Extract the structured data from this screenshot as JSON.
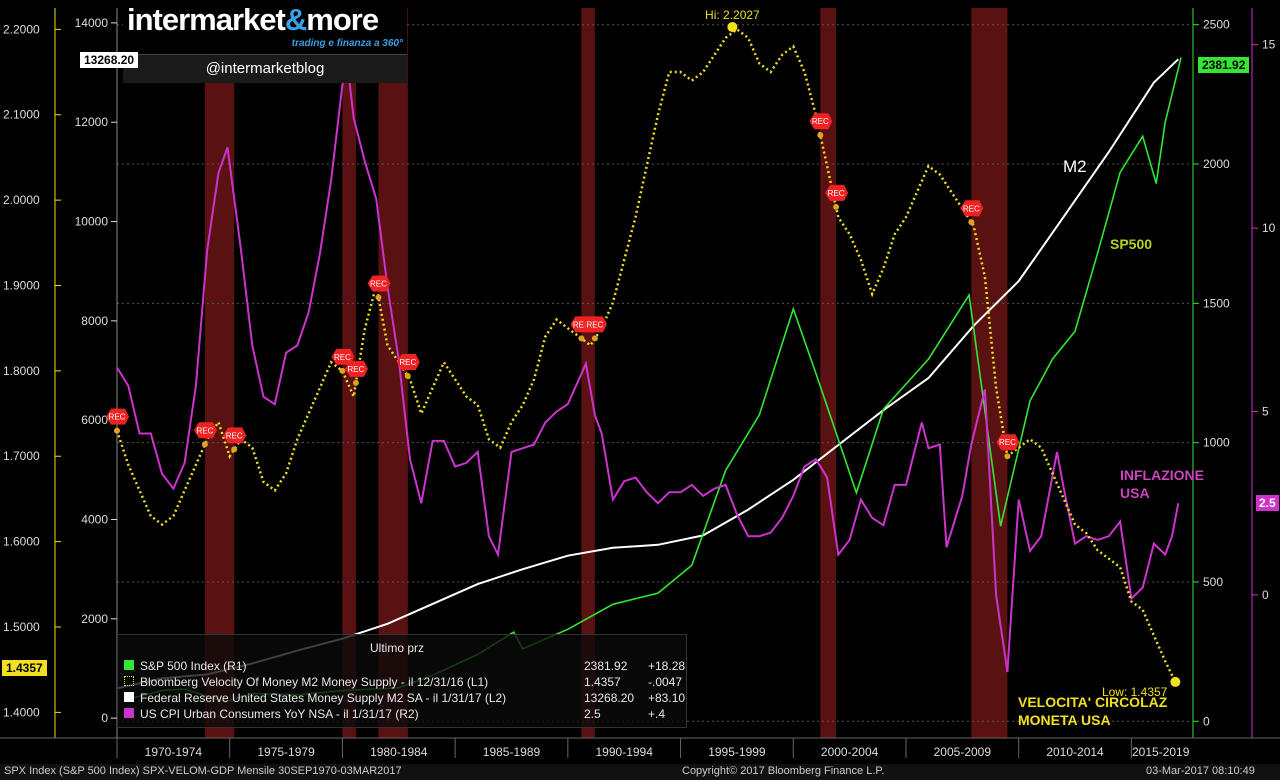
{
  "brand": {
    "name_main": "intermarket",
    "name_amp": "&",
    "name_end": "more",
    "tagline": "trading e finanza a 360°",
    "handle": "@intermarketblog"
  },
  "colors": {
    "sp500": "#33e633",
    "velocity": "#f0e020",
    "m2": "#ffffff",
    "cpi": "#cc33cc",
    "recession": "#6a1414",
    "rec_marker": "#ee2222"
  },
  "axes": {
    "velocity_left": {
      "ticks": [
        "2.2000",
        "2.1000",
        "2.0000",
        "1.9000",
        "1.8000",
        "1.7000",
        "1.6000",
        "1.5000",
        "1.4000"
      ],
      "min": 1.37,
      "max": 2.225
    },
    "m2_left": {
      "ticks": [
        "14000",
        "12000",
        "10000",
        "8000",
        "6000",
        "4000",
        "2000",
        "0"
      ],
      "min": -400,
      "max": 14300
    },
    "sp500_right": {
      "ticks": [
        "2500",
        "2000",
        "1500",
        "1000",
        "500",
        "0"
      ],
      "min": -60,
      "max": 2560
    },
    "cpi_right": {
      "ticks": [
        "15",
        "10",
        "5",
        "0"
      ],
      "min": -3.9,
      "max": 16.0
    },
    "x_periods": [
      "1970-1974",
      "1975-1979",
      "1980-1984",
      "1985-1989",
      "1990-1994",
      "1995-1999",
      "2000-2004",
      "2005-2009",
      "2010-2014",
      "2015-2019"
    ]
  },
  "flags": {
    "m2_last": "13268.20",
    "velocity_last": "1.4357",
    "sp500_last": "2381.92",
    "cpi_last": "2.5"
  },
  "annotations": {
    "hi": "Hi: 2.2027",
    "low": "Low: 1.4357",
    "m2": "M2",
    "sp500": "SP500",
    "inflation_1": "INFLAZIONE",
    "inflation_2": "USA",
    "velocity_1": "VELOCITA' CIRCOLAZ",
    "velocity_2": "MONETA USA",
    "rec": "REC"
  },
  "legend": {
    "header": "Ultimo prz",
    "rows": [
      {
        "name": "S&P 500 Index  (R1)",
        "last": "2381.92",
        "change": "+18.28"
      },
      {
        "name": "Bloomberg Velocity Of Money M2 Money Supply -  il 12/31/16  (L1)",
        "last": "1.4357",
        "change": "-.0047"
      },
      {
        "name": "Federal Reserve United States Money Supply M2 SA -  il 1/31/17  (L2)",
        "last": "13268.20",
        "change": "+83.10"
      },
      {
        "name": "US CPI Urban Consumers YoY NSA -  il 1/31/17  (R2)",
        "last": "2.5",
        "change": "+.4"
      }
    ]
  },
  "footer": {
    "left": "SPX Index (S&P 500 Index) SPX-VELOM-GDP  Mensile 30SEP1970-03MAR2017",
    "center": "Copyright© 2017 Bloomberg Finance L.P.",
    "right": "03-Mar-2017 08:10:49"
  },
  "chart_data": {
    "type": "line",
    "recessions": [
      [
        1973.9,
        1975.2
      ],
      [
        1980.0,
        1980.6
      ],
      [
        1981.6,
        1982.9
      ],
      [
        1990.6,
        1991.2
      ],
      [
        2001.2,
        2001.9
      ],
      [
        2007.9,
        2009.5
      ]
    ],
    "rec_markers": {
      "velocity": [
        1970.0,
        1973.9,
        1975.2,
        1980.0,
        1980.6,
        1981.6,
        1982.9,
        1990.6,
        1991.2,
        2001.2,
        2001.9,
        2007.9,
        2009.5
      ],
      "series_index": "approximate"
    },
    "series": [
      {
        "name": "Bloomberg Velocity Of Money M2 Money Supply",
        "axis": "L1",
        "points": [
          [
            1970.0,
            1.73
          ],
          [
            1970.5,
            1.69
          ],
          [
            1971.0,
            1.66
          ],
          [
            1971.5,
            1.63
          ],
          [
            1972.0,
            1.62
          ],
          [
            1972.5,
            1.63
          ],
          [
            1973.0,
            1.66
          ],
          [
            1973.5,
            1.69
          ],
          [
            1974.0,
            1.72
          ],
          [
            1974.5,
            1.74
          ],
          [
            1975.0,
            1.7
          ],
          [
            1975.5,
            1.72
          ],
          [
            1976.0,
            1.71
          ],
          [
            1976.5,
            1.67
          ],
          [
            1977.0,
            1.66
          ],
          [
            1977.5,
            1.68
          ],
          [
            1978.0,
            1.72
          ],
          [
            1978.5,
            1.75
          ],
          [
            1979.0,
            1.78
          ],
          [
            1979.5,
            1.81
          ],
          [
            1980.0,
            1.8
          ],
          [
            1980.5,
            1.77
          ],
          [
            1981.0,
            1.85
          ],
          [
            1981.5,
            1.9
          ],
          [
            1982.0,
            1.83
          ],
          [
            1982.5,
            1.81
          ],
          [
            1983.0,
            1.79
          ],
          [
            1983.5,
            1.75
          ],
          [
            1984.0,
            1.78
          ],
          [
            1984.5,
            1.81
          ],
          [
            1985.0,
            1.79
          ],
          [
            1985.5,
            1.77
          ],
          [
            1986.0,
            1.76
          ],
          [
            1986.5,
            1.72
          ],
          [
            1987.0,
            1.71
          ],
          [
            1987.5,
            1.74
          ],
          [
            1988.0,
            1.76
          ],
          [
            1988.5,
            1.79
          ],
          [
            1989.0,
            1.84
          ],
          [
            1989.5,
            1.86
          ],
          [
            1990.0,
            1.85
          ],
          [
            1990.5,
            1.84
          ],
          [
            1991.0,
            1.83
          ],
          [
            1991.5,
            1.85
          ],
          [
            1992.0,
            1.88
          ],
          [
            1992.5,
            1.93
          ],
          [
            1993.0,
            1.98
          ],
          [
            1993.5,
            2.04
          ],
          [
            1994.0,
            2.1
          ],
          [
            1994.5,
            2.15
          ],
          [
            1995.0,
            2.15
          ],
          [
            1995.5,
            2.14
          ],
          [
            1996.0,
            2.15
          ],
          [
            1996.5,
            2.17
          ],
          [
            1997.0,
            2.19
          ],
          [
            1997.5,
            2.2
          ],
          [
            1998.0,
            2.19
          ],
          [
            1998.5,
            2.16
          ],
          [
            1999.0,
            2.15
          ],
          [
            1999.5,
            2.17
          ],
          [
            2000.0,
            2.18
          ],
          [
            2000.5,
            2.15
          ],
          [
            2001.0,
            2.1
          ],
          [
            2001.5,
            2.04
          ],
          [
            2002.0,
            1.98
          ],
          [
            2002.5,
            1.96
          ],
          [
            2003.0,
            1.93
          ],
          [
            2003.5,
            1.89
          ],
          [
            2004.0,
            1.92
          ],
          [
            2004.5,
            1.96
          ],
          [
            2005.0,
            1.98
          ],
          [
            2005.5,
            2.01
          ],
          [
            2006.0,
            2.04
          ],
          [
            2006.5,
            2.03
          ],
          [
            2007.0,
            2.01
          ],
          [
            2007.5,
            1.99
          ],
          [
            2008.0,
            1.97
          ],
          [
            2008.5,
            1.91
          ],
          [
            2009.0,
            1.78
          ],
          [
            2009.5,
            1.7
          ],
          [
            2010.0,
            1.71
          ],
          [
            2010.5,
            1.72
          ],
          [
            2011.0,
            1.71
          ],
          [
            2011.5,
            1.68
          ],
          [
            2012.0,
            1.65
          ],
          [
            2012.5,
            1.62
          ],
          [
            2013.0,
            1.61
          ],
          [
            2013.5,
            1.59
          ],
          [
            2014.0,
            1.58
          ],
          [
            2014.5,
            1.57
          ],
          [
            2015.0,
            1.53
          ],
          [
            2015.5,
            1.52
          ],
          [
            2016.0,
            1.49
          ],
          [
            2016.5,
            1.46
          ],
          [
            2016.95,
            1.4357
          ]
        ]
      },
      {
        "name": "Federal Reserve United States Money Supply M2 SA",
        "axis": "L2",
        "points": [
          [
            1970.0,
            600
          ],
          [
            1972.0,
            800
          ],
          [
            1974.0,
            880
          ],
          [
            1976.0,
            1100
          ],
          [
            1978.0,
            1360
          ],
          [
            1980.0,
            1600
          ],
          [
            1982.0,
            1900
          ],
          [
            1984.0,
            2300
          ],
          [
            1986.0,
            2700
          ],
          [
            1988.0,
            3000
          ],
          [
            1990.0,
            3270
          ],
          [
            1992.0,
            3430
          ],
          [
            1994.0,
            3490
          ],
          [
            1996.0,
            3680
          ],
          [
            1998.0,
            4200
          ],
          [
            2000.0,
            4800
          ],
          [
            2002.0,
            5500
          ],
          [
            2004.0,
            6200
          ],
          [
            2006.0,
            6850
          ],
          [
            2008.0,
            7900
          ],
          [
            2010.0,
            8800
          ],
          [
            2012.0,
            10100
          ],
          [
            2014.0,
            11400
          ],
          [
            2016.0,
            12800
          ],
          [
            2017.08,
            13268.2
          ]
        ]
      },
      {
        "name": "S&P 500 Index",
        "axis": "R1",
        "points": [
          [
            1970.7,
            84
          ],
          [
            1972.0,
            110
          ],
          [
            1973.0,
            116
          ],
          [
            1974.8,
            70
          ],
          [
            1976.0,
            100
          ],
          [
            1978.0,
            95
          ],
          [
            1980.0,
            110
          ],
          [
            1982.5,
            120
          ],
          [
            1984.0,
            165
          ],
          [
            1986.0,
            240
          ],
          [
            1987.6,
            320
          ],
          [
            1988.0,
            260
          ],
          [
            1990.0,
            330
          ],
          [
            1992.0,
            420
          ],
          [
            1994.0,
            460
          ],
          [
            1995.5,
            560
          ],
          [
            1997.0,
            900
          ],
          [
            1998.5,
            1100
          ],
          [
            2000.0,
            1480
          ],
          [
            2001.0,
            1250
          ],
          [
            2002.8,
            820
          ],
          [
            2004.0,
            1120
          ],
          [
            2006.0,
            1300
          ],
          [
            2007.8,
            1530
          ],
          [
            2009.2,
            700
          ],
          [
            2010.5,
            1150
          ],
          [
            2011.5,
            1300
          ],
          [
            2012.5,
            1400
          ],
          [
            2013.5,
            1680
          ],
          [
            2014.5,
            1970
          ],
          [
            2015.5,
            2100
          ],
          [
            2016.1,
            1930
          ],
          [
            2016.5,
            2150
          ],
          [
            2017.2,
            2381.92
          ]
        ]
      },
      {
        "name": "US CPI Urban Consumers YoY NSA",
        "axis": "R2",
        "points": [
          [
            1970.0,
            6.2
          ],
          [
            1970.5,
            5.7
          ],
          [
            1971.0,
            4.4
          ],
          [
            1971.5,
            4.4
          ],
          [
            1972.0,
            3.3
          ],
          [
            1972.5,
            2.9
          ],
          [
            1973.0,
            3.6
          ],
          [
            1973.5,
            5.7
          ],
          [
            1974.0,
            9.4
          ],
          [
            1974.5,
            11.5
          ],
          [
            1974.9,
            12.2
          ],
          [
            1975.5,
            9.4
          ],
          [
            1976.0,
            6.8
          ],
          [
            1976.5,
            5.4
          ],
          [
            1977.0,
            5.2
          ],
          [
            1977.5,
            6.6
          ],
          [
            1978.0,
            6.8
          ],
          [
            1978.5,
            7.7
          ],
          [
            1979.0,
            9.3
          ],
          [
            1979.5,
            11.3
          ],
          [
            1980.0,
            13.9
          ],
          [
            1980.2,
            14.6
          ],
          [
            1980.5,
            13.0
          ],
          [
            1981.0,
            11.8
          ],
          [
            1981.5,
            10.8
          ],
          [
            1982.0,
            8.4
          ],
          [
            1982.5,
            6.4
          ],
          [
            1983.0,
            3.7
          ],
          [
            1983.5,
            2.5
          ],
          [
            1984.0,
            4.2
          ],
          [
            1984.5,
            4.2
          ],
          [
            1985.0,
            3.5
          ],
          [
            1985.5,
            3.6
          ],
          [
            1986.0,
            3.9
          ],
          [
            1986.5,
            1.6
          ],
          [
            1986.9,
            1.1
          ],
          [
            1987.5,
            3.9
          ],
          [
            1988.0,
            4.0
          ],
          [
            1988.5,
            4.1
          ],
          [
            1989.0,
            4.7
          ],
          [
            1989.5,
            5.0
          ],
          [
            1990.0,
            5.2
          ],
          [
            1990.8,
            6.3
          ],
          [
            1991.2,
            4.9
          ],
          [
            1991.5,
            4.4
          ],
          [
            1992.0,
            2.6
          ],
          [
            1992.5,
            3.1
          ],
          [
            1993.0,
            3.2
          ],
          [
            1993.5,
            2.8
          ],
          [
            1994.0,
            2.5
          ],
          [
            1994.5,
            2.8
          ],
          [
            1995.0,
            2.8
          ],
          [
            1995.5,
            3.0
          ],
          [
            1996.0,
            2.7
          ],
          [
            1996.5,
            2.9
          ],
          [
            1997.0,
            3.0
          ],
          [
            1997.5,
            2.2
          ],
          [
            1998.0,
            1.6
          ],
          [
            1998.5,
            1.6
          ],
          [
            1999.0,
            1.7
          ],
          [
            1999.5,
            2.1
          ],
          [
            2000.0,
            2.7
          ],
          [
            2000.5,
            3.5
          ],
          [
            2001.0,
            3.7
          ],
          [
            2001.5,
            3.2
          ],
          [
            2002.0,
            1.1
          ],
          [
            2002.5,
            1.5
          ],
          [
            2003.0,
            2.6
          ],
          [
            2003.5,
            2.1
          ],
          [
            2004.0,
            1.9
          ],
          [
            2004.5,
            3.0
          ],
          [
            2005.0,
            3.0
          ],
          [
            2005.7,
            4.7
          ],
          [
            2006.0,
            4.0
          ],
          [
            2006.5,
            4.1
          ],
          [
            2006.8,
            1.3
          ],
          [
            2007.5,
            2.7
          ],
          [
            2007.9,
            4.1
          ],
          [
            2008.5,
            5.6
          ],
          [
            2009.0,
            0.0
          ],
          [
            2009.5,
            -2.1
          ],
          [
            2010.0,
            2.6
          ],
          [
            2010.5,
            1.2
          ],
          [
            2011.0,
            1.6
          ],
          [
            2011.7,
            3.9
          ],
          [
            2012.0,
            2.9
          ],
          [
            2012.5,
            1.4
          ],
          [
            2013.0,
            1.6
          ],
          [
            2013.5,
            1.5
          ],
          [
            2014.0,
            1.6
          ],
          [
            2014.5,
            2.0
          ],
          [
            2015.0,
            -0.1
          ],
          [
            2015.5,
            0.2
          ],
          [
            2016.0,
            1.4
          ],
          [
            2016.5,
            1.1
          ],
          [
            2016.8,
            1.6
          ],
          [
            2017.08,
            2.5
          ]
        ]
      }
    ]
  }
}
